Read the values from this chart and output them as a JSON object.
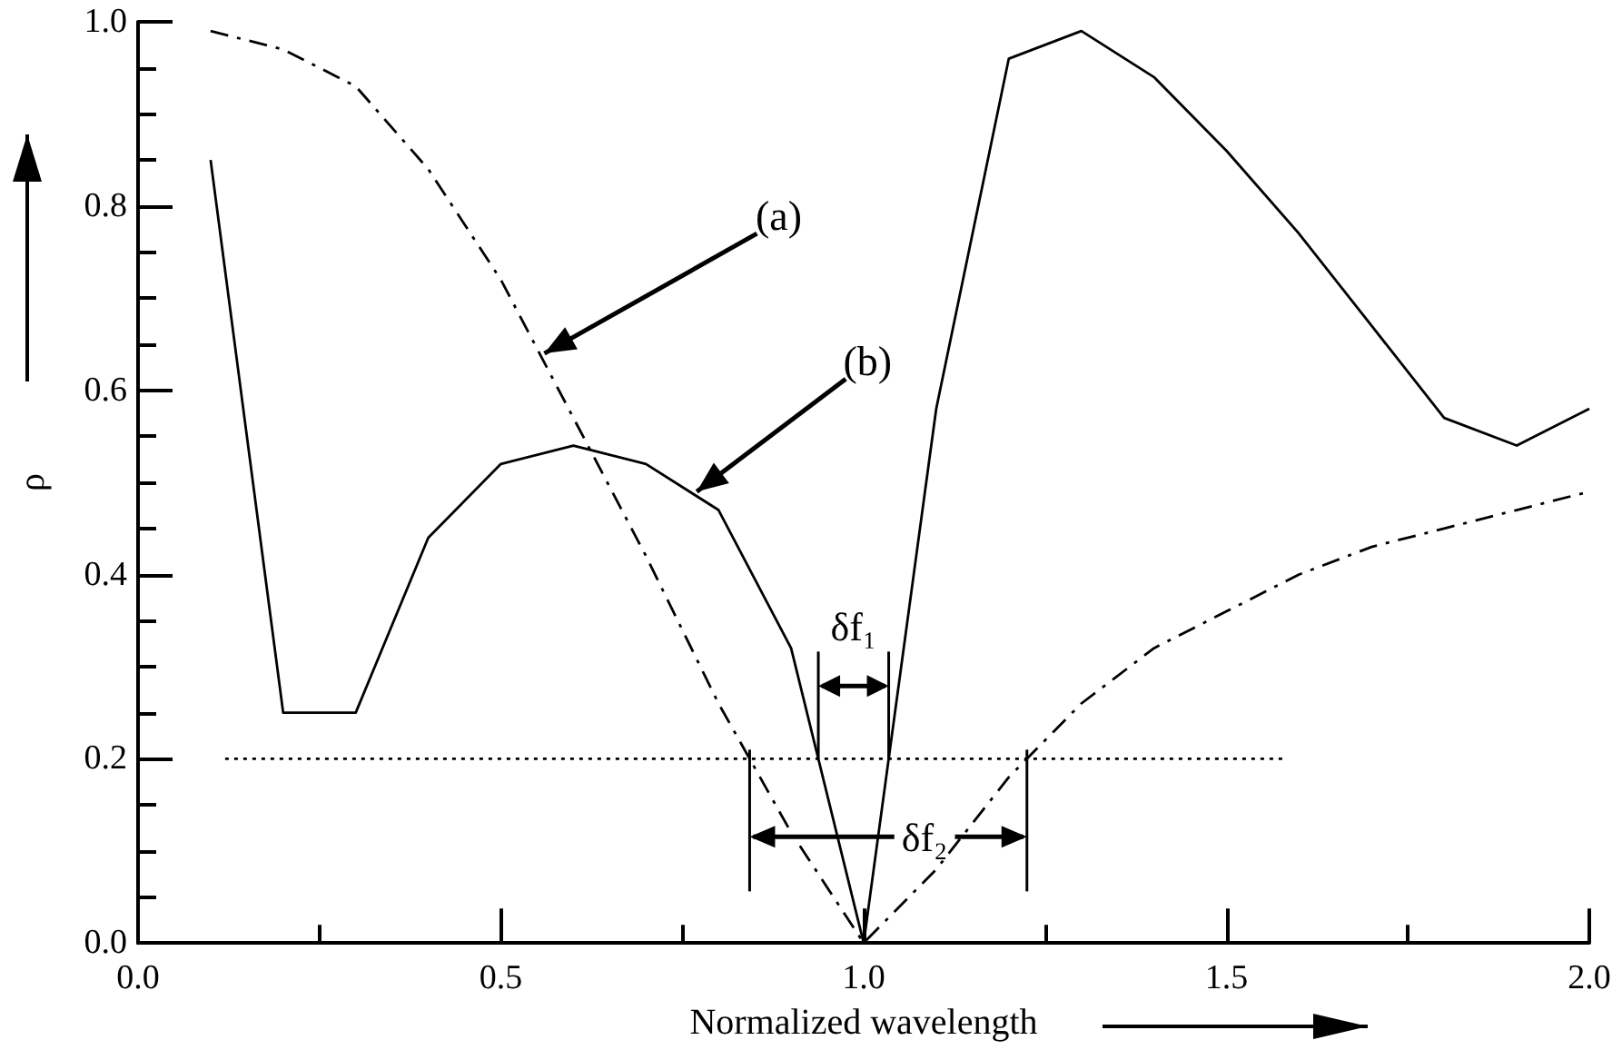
{
  "chart_data": {
    "type": "line",
    "xlabel": "Normalized wavelength",
    "ylabel": "ρ",
    "marker": "none",
    "series": [
      {
        "color": "#000000",
        "line_style": "dashed",
        "x": [
          0.1,
          0.2,
          0.3,
          0.4,
          0.5,
          0.6,
          0.7,
          0.8,
          0.9,
          1.0,
          1.1,
          1.2,
          1.3,
          1.4,
          1.5,
          1.6,
          1.7,
          1.8,
          1.9,
          2.0
        ],
        "values": [
          0.99,
          0.97,
          0.93,
          0.84,
          0.72,
          0.57,
          0.42,
          0.26,
          0.12,
          0,
          0.08,
          0.18,
          0.26,
          0.32,
          0.36,
          0.4,
          0.43,
          0.45,
          0.47,
          0.49
        ]
      },
      {
        "color": "#000000",
        "line_style": "solid",
        "x": [
          0.1,
          0.2,
          0.3,
          0.4,
          0.5,
          0.6,
          0.7,
          0.8,
          0.9,
          1.0,
          1.1,
          1.2,
          1.3,
          1.4,
          1.5,
          1.6,
          1.7,
          1.8,
          1.9,
          2.0
        ],
        "values": [
          0.85,
          0.25,
          0.25,
          0.44,
          0.52,
          0.54,
          0.52,
          0.47,
          0.32,
          0,
          0.58,
          0.96,
          0.99,
          0.94,
          0.86,
          0.77,
          0.67,
          0.57,
          0.54,
          0.58
        ]
      },
      {
        "color": "#000000",
        "line_style": "dotted",
        "x": [
          0.12,
          1.58
        ],
        "values": [
          0.2,
          0.2
        ]
      }
    ],
    "annotations": [
      {
        "text": "(a)",
        "x": 0.56,
        "y": 0.64
      },
      {
        "text": "(b)",
        "x": 0.77,
        "y": 0.49
      },
      {
        "text": "δf₁",
        "x": 0.98,
        "y": 0.2
      },
      {
        "text": "δf₂",
        "x": 1.03,
        "y": 0.2
      }
    ],
    "xlim": [
      0,
      2
    ],
    "ylim": [
      0,
      1
    ],
    "xticks": [
      {
        "value": 0,
        "label": "0.0"
      },
      {
        "value": 0.25,
        "label": null
      },
      0.5,
      {
        "value": 0.75,
        "label": null
      },
      {
        "value": 1,
        "label": "1.0"
      },
      {
        "value": 1.25,
        "label": null
      },
      1.5,
      {
        "value": 1.75,
        "label": null
      },
      {
        "value": 2,
        "label": "2.0"
      }
    ],
    "yticks": [
      {
        "value": 0,
        "label": "0.0"
      },
      {
        "value": 0.05,
        "label": null
      },
      {
        "value": 0.1,
        "label": null
      },
      {
        "value": 0.15,
        "label": null
      },
      0.2,
      {
        "value": 0.25,
        "label": null
      },
      {
        "value": 0.3,
        "label": null
      },
      {
        "value": 0.35,
        "label": null
      },
      0.4,
      {
        "value": 0.45,
        "label": null
      },
      {
        "value": 0.5,
        "label": null
      },
      {
        "value": 0.55,
        "label": null
      },
      0.6,
      {
        "value": 0.65,
        "label": null
      },
      {
        "value": 0.7,
        "label": null
      },
      {
        "value": 0.75,
        "label": null
      },
      0.8,
      {
        "value": 0.85,
        "label": null
      },
      {
        "value": 0.9,
        "label": null
      },
      {
        "value": 0.95,
        "label": null
      },
      {
        "value": 1,
        "label": "1.0"
      }
    ]
  }
}
